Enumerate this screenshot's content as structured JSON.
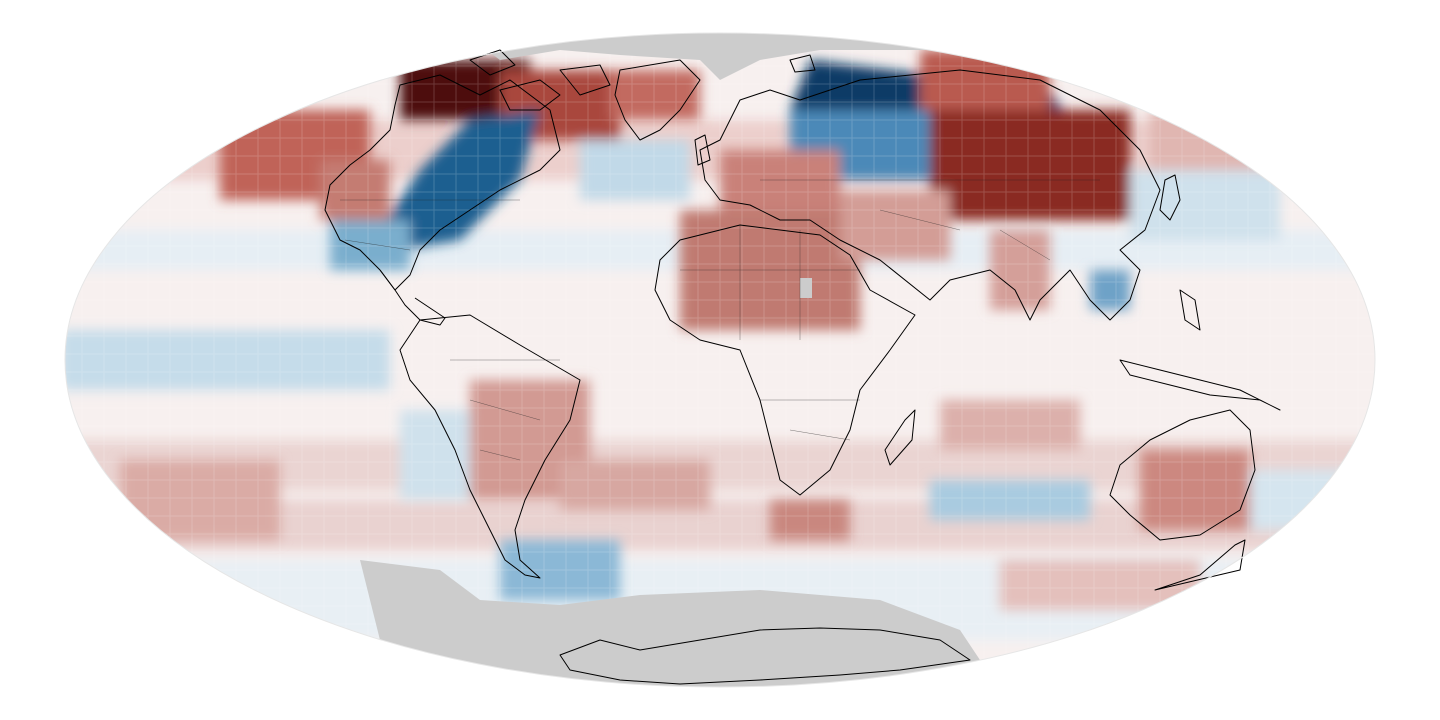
{
  "map": {
    "projection": "mollweide",
    "palette": {
      "cold_strong": "#0b3a66",
      "cold_mid": "#3f7fb0",
      "cold_light": "#bcd7e6",
      "neutral": "#ffffff",
      "warm_light": "#ecc6c2",
      "warm_mid": "#b9574c",
      "warm_strong": "#4d0f0b",
      "no_data": "#cccccc",
      "coastline": "#000000"
    },
    "layers": [
      "temperature-anomaly-grid",
      "no-data-mask",
      "coastlines",
      "country-borders"
    ]
  }
}
